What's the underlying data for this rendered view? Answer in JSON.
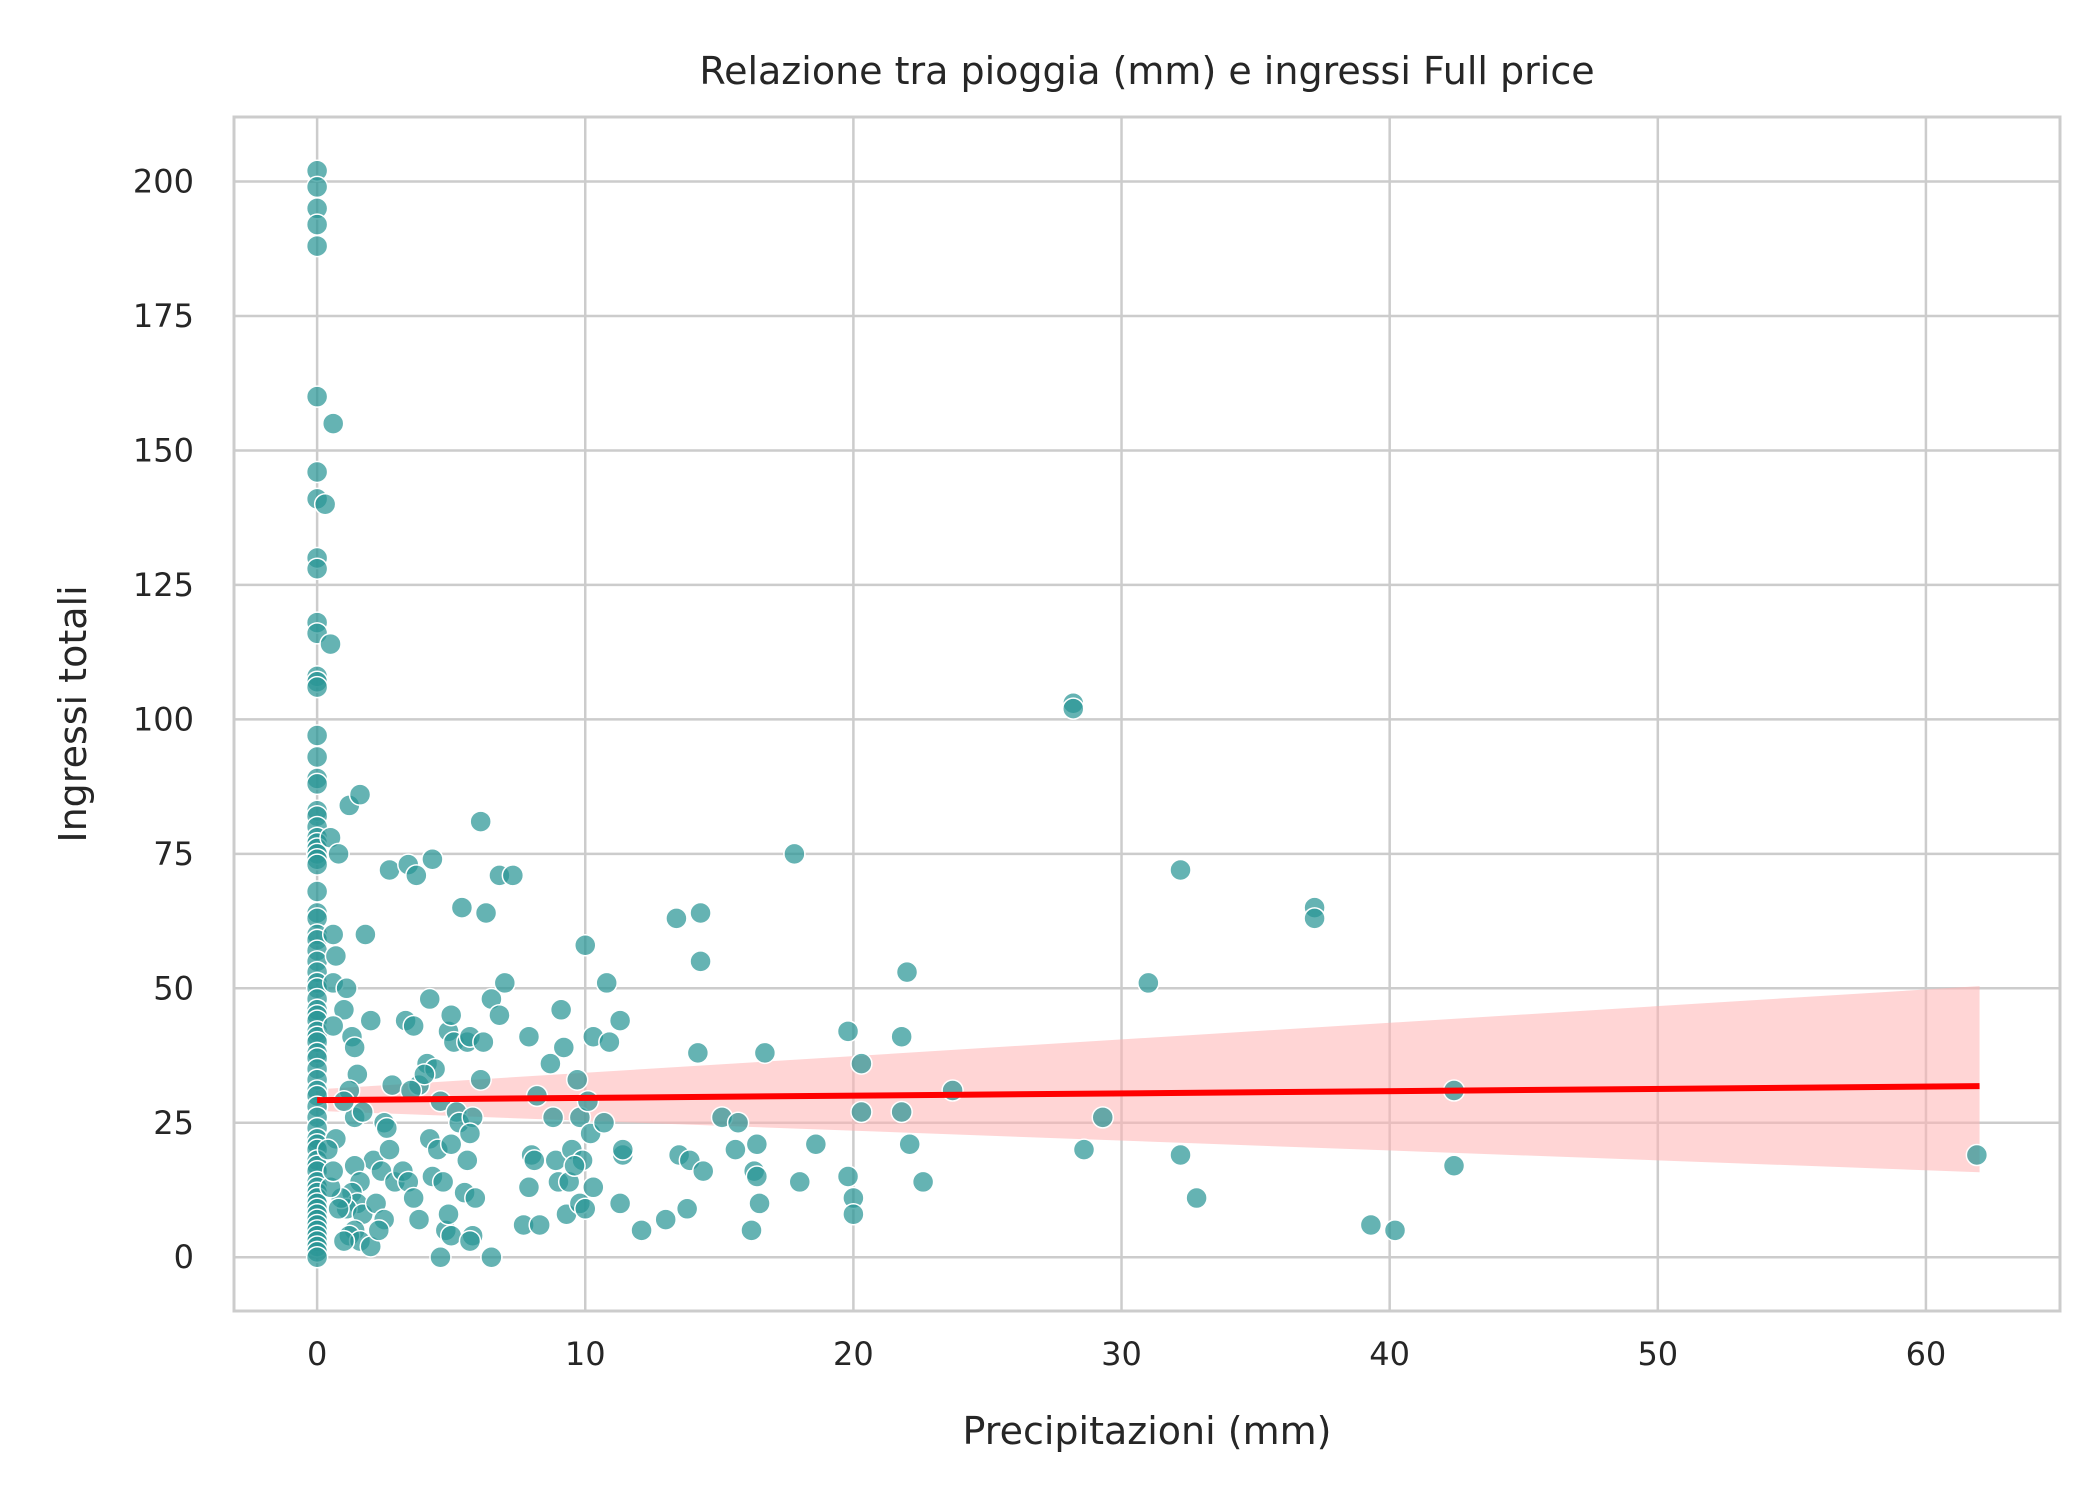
{
  "chart_data": {
    "type": "scatter",
    "title": "Relazione tra pioggia (mm) e ingressi Full price",
    "xlabel": "Precipitazioni (mm)",
    "ylabel": "Ingressi totali",
    "xlim": [
      -3.1,
      65.0
    ],
    "ylim": [
      -10,
      212
    ],
    "xticks": [
      0,
      10,
      20,
      30,
      40,
      50,
      60
    ],
    "yticks": [
      0,
      25,
      50,
      75,
      100,
      125,
      150,
      175,
      200
    ],
    "grid": true,
    "colors": {
      "points": "#2a9596",
      "point_edge": "#ffffff",
      "regression_line": "#ff0000",
      "confidence_band": "#ffb3b3",
      "grid": "#cccccc"
    },
    "points": [
      [
        0,
        202
      ],
      [
        0,
        199
      ],
      [
        0,
        195
      ],
      [
        0,
        192
      ],
      [
        0,
        188
      ],
      [
        0,
        160
      ],
      [
        0.6,
        155
      ],
      [
        0,
        146
      ],
      [
        0,
        141
      ],
      [
        0.3,
        140
      ],
      [
        0,
        130
      ],
      [
        0,
        128
      ],
      [
        0,
        118
      ],
      [
        0,
        116
      ],
      [
        0.5,
        114
      ],
      [
        0,
        108
      ],
      [
        0,
        107
      ],
      [
        0,
        106
      ],
      [
        0,
        97
      ],
      [
        0,
        93
      ],
      [
        0,
        89
      ],
      [
        0,
        88
      ],
      [
        0,
        83
      ],
      [
        0,
        82
      ],
      [
        0,
        80
      ],
      [
        0,
        78
      ],
      [
        0,
        77
      ],
      [
        0,
        76
      ],
      [
        0,
        75
      ],
      [
        0,
        74
      ],
      [
        0,
        73
      ],
      [
        0,
        68
      ],
      [
        0,
        64
      ],
      [
        0,
        63
      ],
      [
        0,
        60
      ],
      [
        0,
        59
      ],
      [
        0,
        57
      ],
      [
        0,
        55
      ],
      [
        0,
        53
      ],
      [
        0,
        51
      ],
      [
        0,
        50
      ],
      [
        0,
        48
      ],
      [
        0,
        46
      ],
      [
        0,
        45
      ],
      [
        0,
        44
      ],
      [
        0,
        42
      ],
      [
        0,
        41
      ],
      [
        0,
        40
      ],
      [
        0,
        38
      ],
      [
        0,
        37
      ],
      [
        0,
        35
      ],
      [
        0,
        33
      ],
      [
        0,
        31
      ],
      [
        0,
        30
      ],
      [
        0,
        28
      ],
      [
        0,
        26
      ],
      [
        0,
        24
      ],
      [
        0,
        22
      ],
      [
        0,
        21
      ],
      [
        0,
        20
      ],
      [
        0,
        18
      ],
      [
        0,
        17
      ],
      [
        0,
        16
      ],
      [
        0,
        14
      ],
      [
        0,
        13
      ],
      [
        0,
        12
      ],
      [
        0,
        11
      ],
      [
        0,
        10
      ],
      [
        0,
        9
      ],
      [
        0,
        8
      ],
      [
        0,
        7
      ],
      [
        0,
        6
      ],
      [
        0,
        5
      ],
      [
        0,
        4
      ],
      [
        0,
        3
      ],
      [
        0,
        2
      ],
      [
        0,
        1
      ],
      [
        0,
        0
      ],
      [
        0.5,
        78
      ],
      [
        0.6,
        60
      ],
      [
        0.7,
        56
      ],
      [
        0.8,
        75
      ],
      [
        0.6,
        51
      ],
      [
        1.1,
        50
      ],
      [
        1.0,
        46
      ],
      [
        0.6,
        43
      ],
      [
        1.3,
        41
      ],
      [
        1.4,
        39
      ],
      [
        1.5,
        34
      ],
      [
        1.2,
        31
      ],
      [
        1.4,
        26
      ],
      [
        1.0,
        29
      ],
      [
        1.7,
        27
      ],
      [
        1.2,
        84
      ],
      [
        1.6,
        86
      ],
      [
        1.8,
        60
      ],
      [
        2.0,
        44
      ],
      [
        2.1,
        18
      ],
      [
        1.4,
        17
      ],
      [
        1.6,
        14
      ],
      [
        1.3,
        12
      ],
      [
        1.5,
        10
      ],
      [
        1.1,
        9
      ],
      [
        1.7,
        8
      ],
      [
        1.4,
        5
      ],
      [
        1.2,
        4
      ],
      [
        1.6,
        3
      ],
      [
        2.0,
        2
      ],
      [
        0.9,
        11
      ],
      [
        0.8,
        9
      ],
      [
        1.0,
        3
      ],
      [
        0.5,
        13
      ],
      [
        0.6,
        16
      ],
      [
        0.7,
        22
      ],
      [
        0.4,
        20
      ],
      [
        2.5,
        25
      ],
      [
        2.6,
        24
      ],
      [
        2.7,
        20
      ],
      [
        2.8,
        32
      ],
      [
        2.4,
        16
      ],
      [
        2.9,
        14
      ],
      [
        2.2,
        10
      ],
      [
        2.5,
        7
      ],
      [
        2.3,
        5
      ],
      [
        2.7,
        72
      ],
      [
        3.4,
        73
      ],
      [
        3.7,
        71
      ],
      [
        3.3,
        44
      ],
      [
        3.6,
        43
      ],
      [
        3.8,
        32
      ],
      [
        3.5,
        31
      ],
      [
        3.2,
        16
      ],
      [
        3.4,
        14
      ],
      [
        3.6,
        11
      ],
      [
        3.8,
        7
      ],
      [
        4.3,
        74
      ],
      [
        4.2,
        48
      ],
      [
        4.1,
        36
      ],
      [
        4.4,
        35
      ],
      [
        4.0,
        34
      ],
      [
        4.6,
        29
      ],
      [
        4.2,
        22
      ],
      [
        4.5,
        20
      ],
      [
        4.3,
        15
      ],
      [
        4.7,
        14
      ],
      [
        4.6,
        0
      ],
      [
        4.8,
        5
      ],
      [
        4.9,
        8
      ],
      [
        5.0,
        4
      ],
      [
        4.9,
        42
      ],
      [
        5.0,
        45
      ],
      [
        5.1,
        40
      ],
      [
        5.2,
        27
      ],
      [
        5.3,
        25
      ],
      [
        5.0,
        21
      ],
      [
        5.4,
        65
      ],
      [
        5.6,
        40
      ],
      [
        5.7,
        41
      ],
      [
        5.8,
        26
      ],
      [
        5.7,
        23
      ],
      [
        5.6,
        18
      ],
      [
        5.5,
        12
      ],
      [
        5.9,
        11
      ],
      [
        5.8,
        4
      ],
      [
        5.7,
        3
      ],
      [
        6.1,
        81
      ],
      [
        6.3,
        64
      ],
      [
        6.5,
        48
      ],
      [
        6.2,
        40
      ],
      [
        6.1,
        33
      ],
      [
        6.5,
        0
      ],
      [
        6.8,
        71
      ],
      [
        7.3,
        71
      ],
      [
        7.0,
        51
      ],
      [
        6.8,
        45
      ],
      [
        7.7,
        6
      ],
      [
        7.9,
        13
      ],
      [
        8.0,
        19
      ],
      [
        8.1,
        18
      ],
      [
        7.9,
        41
      ],
      [
        8.2,
        30
      ],
      [
        8.3,
        6
      ],
      [
        8.7,
        36
      ],
      [
        8.8,
        26
      ],
      [
        8.9,
        18
      ],
      [
        9.1,
        46
      ],
      [
        9.2,
        39
      ],
      [
        9.0,
        14
      ],
      [
        9.4,
        14
      ],
      [
        9.5,
        20
      ],
      [
        9.7,
        33
      ],
      [
        9.8,
        26
      ],
      [
        9.9,
        18
      ],
      [
        9.6,
        17
      ],
      [
        9.3,
        8
      ],
      [
        9.8,
        10
      ],
      [
        10.0,
        9
      ],
      [
        10.0,
        58
      ],
      [
        10.3,
        41
      ],
      [
        10.1,
        29
      ],
      [
        10.2,
        23
      ],
      [
        10.3,
        13
      ],
      [
        10.8,
        51
      ],
      [
        10.9,
        40
      ],
      [
        10.7,
        25
      ],
      [
        11.3,
        44
      ],
      [
        11.4,
        19
      ],
      [
        11.4,
        20
      ],
      [
        11.3,
        10
      ],
      [
        12.1,
        5
      ],
      [
        13.0,
        7
      ],
      [
        13.4,
        63
      ],
      [
        13.5,
        19
      ],
      [
        13.9,
        18
      ],
      [
        13.8,
        9
      ],
      [
        14.3,
        64
      ],
      [
        14.3,
        55
      ],
      [
        14.2,
        38
      ],
      [
        14.4,
        16
      ],
      [
        15.1,
        26
      ],
      [
        15.7,
        25
      ],
      [
        15.6,
        20
      ],
      [
        16.2,
        5
      ],
      [
        16.4,
        21
      ],
      [
        16.5,
        10
      ],
      [
        16.3,
        16
      ],
      [
        16.4,
        15
      ],
      [
        16.7,
        38
      ],
      [
        17.8,
        75
      ],
      [
        18.0,
        14
      ],
      [
        18.6,
        21
      ],
      [
        19.8,
        42
      ],
      [
        19.8,
        15
      ],
      [
        20.0,
        11
      ],
      [
        20.0,
        8
      ],
      [
        20.3,
        36
      ],
      [
        20.3,
        27
      ],
      [
        21.8,
        41
      ],
      [
        21.8,
        27
      ],
      [
        22.0,
        53
      ],
      [
        22.1,
        21
      ],
      [
        22.6,
        14
      ],
      [
        23.7,
        31
      ],
      [
        28.2,
        103
      ],
      [
        28.2,
        102
      ],
      [
        28.6,
        20
      ],
      [
        29.3,
        26
      ],
      [
        31.0,
        51
      ],
      [
        32.2,
        72
      ],
      [
        32.2,
        19
      ],
      [
        32.8,
        11
      ],
      [
        37.2,
        65
      ],
      [
        37.2,
        63
      ],
      [
        39.3,
        6
      ],
      [
        40.2,
        5
      ],
      [
        42.4,
        31
      ],
      [
        42.4,
        17
      ],
      [
        61.9,
        19
      ]
    ],
    "regression_line": {
      "x": [
        0,
        62
      ],
      "y": [
        29.2,
        31.8
      ]
    },
    "confidence_band": {
      "x": [
        0,
        62
      ],
      "lower": [
        27.2,
        15.8
      ],
      "upper": [
        31.2,
        50.4
      ]
    }
  }
}
